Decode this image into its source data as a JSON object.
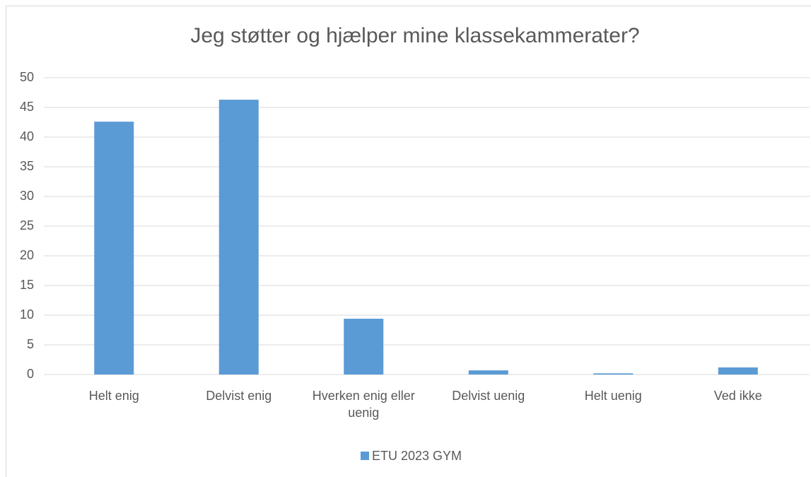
{
  "chart_data": {
    "type": "bar",
    "title": "Jeg støtter og hjælper mine klassekammerater?",
    "categories": [
      "Helt enig",
      "Delvist enig",
      "Hverken enig eller uenig",
      "Delvist uenig",
      "Helt uenig",
      "Ved ikke"
    ],
    "series": [
      {
        "name": "ETU 2023 GYM",
        "color": "#5b9bd5",
        "values": [
          42.6,
          46.3,
          9.4,
          0.7,
          0.2,
          1.2
        ]
      }
    ],
    "ylim": [
      0,
      50
    ],
    "yticks": [
      0,
      5,
      10,
      15,
      20,
      25,
      30,
      35,
      40,
      45,
      50
    ],
    "grid": true,
    "legend": "bottom"
  }
}
